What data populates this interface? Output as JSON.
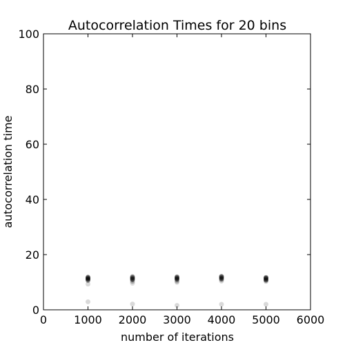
{
  "chart_data": {
    "type": "scatter",
    "title": "Autocorrelation Times for 20 bins",
    "xlabel": "number of iterations",
    "ylabel": "autocorrelation time",
    "xlim": [
      0,
      6000
    ],
    "ylim": [
      0,
      100
    ],
    "xticks": [
      0,
      1000,
      2000,
      3000,
      4000,
      5000,
      6000
    ],
    "yticks": [
      0,
      20,
      40,
      60,
      80,
      100
    ],
    "grid": false,
    "legend": "none",
    "point_color": "#000000",
    "points": [
      {
        "x": 1000,
        "y": 11.8,
        "opacity": 0.5
      },
      {
        "x": 1000,
        "y": 11.5,
        "opacity": 0.5
      },
      {
        "x": 1000,
        "y": 11.2,
        "opacity": 0.5
      },
      {
        "x": 1000,
        "y": 10.9,
        "opacity": 0.4
      },
      {
        "x": 1000,
        "y": 10.6,
        "opacity": 0.3
      },
      {
        "x": 1000,
        "y": 9.3,
        "opacity": 0.15
      },
      {
        "x": 1000,
        "y": 2.9,
        "opacity": 0.15
      },
      {
        "x": 2000,
        "y": 12.0,
        "opacity": 0.4
      },
      {
        "x": 2000,
        "y": 11.6,
        "opacity": 0.5
      },
      {
        "x": 2000,
        "y": 11.2,
        "opacity": 0.5
      },
      {
        "x": 2000,
        "y": 10.8,
        "opacity": 0.4
      },
      {
        "x": 2000,
        "y": 10.2,
        "opacity": 0.2
      },
      {
        "x": 2000,
        "y": 9.6,
        "opacity": 0.12
      },
      {
        "x": 2000,
        "y": 2.1,
        "opacity": 0.15
      },
      {
        "x": 3000,
        "y": 11.9,
        "opacity": 0.5
      },
      {
        "x": 3000,
        "y": 11.5,
        "opacity": 0.5
      },
      {
        "x": 3000,
        "y": 11.2,
        "opacity": 0.5
      },
      {
        "x": 3000,
        "y": 10.8,
        "opacity": 0.3
      },
      {
        "x": 3000,
        "y": 10.3,
        "opacity": 0.2
      },
      {
        "x": 3000,
        "y": 9.9,
        "opacity": 0.12
      },
      {
        "x": 3000,
        "y": 1.6,
        "opacity": 0.15
      },
      {
        "x": 4000,
        "y": 12.1,
        "opacity": 0.5
      },
      {
        "x": 4000,
        "y": 11.7,
        "opacity": 0.5
      },
      {
        "x": 4000,
        "y": 11.3,
        "opacity": 0.5
      },
      {
        "x": 4000,
        "y": 10.9,
        "opacity": 0.3
      },
      {
        "x": 4000,
        "y": 10.4,
        "opacity": 0.15
      },
      {
        "x": 4000,
        "y": 2.0,
        "opacity": 0.15
      },
      {
        "x": 5000,
        "y": 11.7,
        "opacity": 0.5
      },
      {
        "x": 5000,
        "y": 11.4,
        "opacity": 0.5
      },
      {
        "x": 5000,
        "y": 11.0,
        "opacity": 0.5
      },
      {
        "x": 5000,
        "y": 10.7,
        "opacity": 0.4
      },
      {
        "x": 5000,
        "y": 10.3,
        "opacity": 0.2
      },
      {
        "x": 5000,
        "y": 2.0,
        "opacity": 0.15
      }
    ]
  }
}
